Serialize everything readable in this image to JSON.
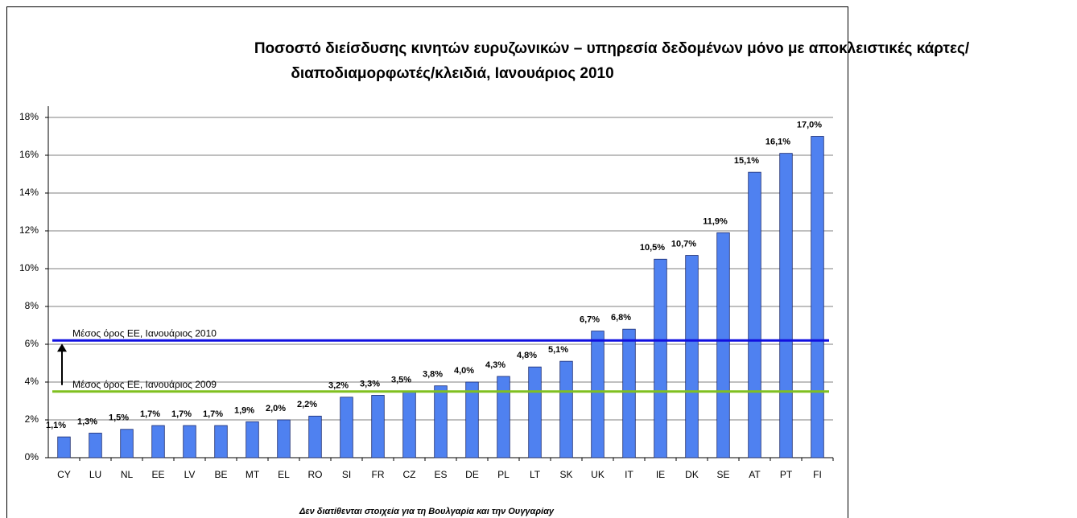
{
  "chart_data": {
    "type": "bar",
    "title": [
      "Ποσοστό διείσδυσης κινητών ευρυζωνικών – υπηρεσία δεδομένων μόνο με αποκλειστικές κάρτες/",
      "διαποδιαμορφωτές/κλειδιά,  Ιανουάριος 2010"
    ],
    "categories": [
      "CY",
      "LU",
      "NL",
      "EE",
      "LV",
      "BE",
      "MT",
      "EL",
      "RO",
      "SI",
      "FR",
      "CZ",
      "ES",
      "DE",
      "PL",
      "LT",
      "SK",
      "UK",
      "IT",
      "IE",
      "DK",
      "SE",
      "AT",
      "PT",
      "FI"
    ],
    "values": [
      1.1,
      1.3,
      1.5,
      1.7,
      1.7,
      1.7,
      1.9,
      2.0,
      2.2,
      3.2,
      3.3,
      3.5,
      3.8,
      4.0,
      4.3,
      4.8,
      5.1,
      6.7,
      6.8,
      10.5,
      10.7,
      11.9,
      15.1,
      16.1,
      17.0
    ],
    "value_labels": [
      "1,1%",
      "1,3%",
      "1,5%",
      "1,7%",
      "1,7%",
      "1,7%",
      "1,9%",
      "2,0%",
      "2,2%",
      "3,2%",
      "3,3%",
      "3,5%",
      "3,8%",
      "4,0%",
      "4,3%",
      "4,8%",
      "5,1%",
      "6,7%",
      "6,8%",
      "10,5%",
      "10,7%",
      "11,9%",
      "15,1%",
      "16,1%",
      "17,0%"
    ],
    "color": "#4f81f0",
    "ylim": [
      0,
      18
    ],
    "yticks": [
      {
        "value": 0,
        "label": "0%"
      },
      {
        "value": 2,
        "label": "2%"
      },
      {
        "value": 4,
        "label": "4%"
      },
      {
        "value": 6,
        "label": "6%"
      },
      {
        "value": 8,
        "label": "8%"
      },
      {
        "value": 10,
        "label": "10%"
      },
      {
        "value": 12,
        "label": "12%"
      },
      {
        "value": 14,
        "label": "14%"
      },
      {
        "value": 16,
        "label": "16%"
      },
      {
        "value": 18,
        "label": "18%"
      }
    ],
    "grid": true,
    "reference_lines": [
      {
        "name": "Μέσος όρος ΕΕ, Ιανουάριος 2010",
        "value": 6.2,
        "color": "#1010e0"
      },
      {
        "name": "Μέσος όρος ΕΕ, Ιανουάριος 2009",
        "value": 3.5,
        "color": "#80c020"
      }
    ],
    "note": "Δεν διατίθενται στοιχεία για τη Βουλγαρία και την Ουγγαρίαy"
  }
}
